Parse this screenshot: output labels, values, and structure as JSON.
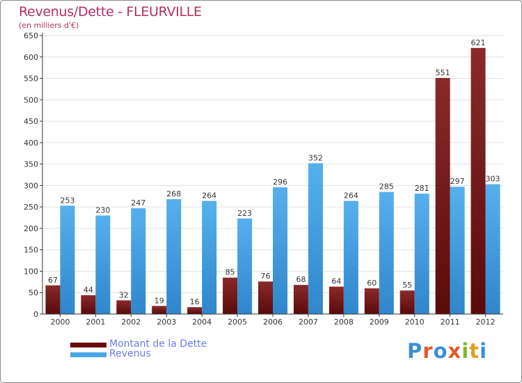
{
  "title": "Revenus/Dette - FLEURVILLE",
  "subtitle": "(en milliers d'€)",
  "colors": {
    "debt": "#7a1a1a",
    "debt_dark": "#5a0e0e",
    "revenue": "#4aa6e8",
    "revenue_dark": "#2f86cc",
    "axis": "#333333",
    "grid": "#e0e0e0"
  },
  "legend": [
    {
      "label": "Montant de la Dette",
      "color": "#6a0a0a"
    },
    {
      "label": "Revenus",
      "color": "#4aa6e8"
    }
  ],
  "logo": {
    "letters": [
      "P",
      "r",
      "o",
      "x",
      "i",
      "t",
      "i"
    ],
    "colors": [
      "#3a8fd9",
      "#e05a2a",
      "#3a8fd9",
      "#e05a2a",
      "#7ab832",
      "#e0a020",
      "#3a8fd9"
    ]
  },
  "chart_data": {
    "type": "bar",
    "title": "Revenus/Dette - FLEURVILLE",
    "ylabel": "(en milliers d'€)",
    "xlabel": "",
    "ylim": [
      0,
      650
    ],
    "yticks": [
      0,
      50,
      100,
      150,
      200,
      250,
      300,
      350,
      400,
      450,
      500,
      550,
      600,
      650
    ],
    "categories": [
      "2000",
      "2001",
      "2002",
      "2003",
      "2004",
      "2005",
      "2006",
      "2007",
      "2008",
      "2009",
      "2010",
      "2011",
      "2012"
    ],
    "series": [
      {
        "name": "Montant de la Dette",
        "values": [
          67,
          44,
          32,
          19,
          16,
          85,
          76,
          68,
          64,
          60,
          55,
          551,
          621
        ]
      },
      {
        "name": "Revenus",
        "values": [
          253,
          230,
          247,
          268,
          264,
          223,
          296,
          352,
          264,
          285,
          281,
          297,
          303
        ]
      }
    ],
    "grid": true,
    "legend_position": "bottom-left"
  }
}
